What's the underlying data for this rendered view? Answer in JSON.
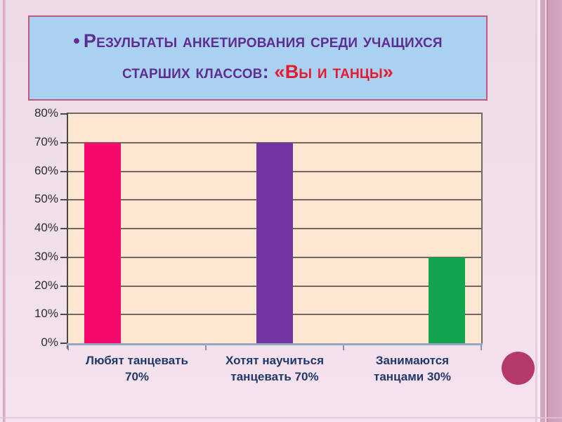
{
  "title": {
    "bullet": "•",
    "line1": "Результаты анкетирования среди учащихся",
    "line2": "старших классов: ",
    "accent": "«Вы и танцы»",
    "text_color": "#5f2d91",
    "accent_color": "#e8192c",
    "box_fill": "#a9d1f2",
    "box_border": "#c4587c"
  },
  "chart_data": {
    "type": "bar",
    "title": "",
    "categories": [
      {
        "label": "Любят танцевать 70%",
        "line1": "Любят танцевать",
        "line2": "70%"
      },
      {
        "label": "Хотят научиться танцевать 70%",
        "line1": "Хотят научиться",
        "line2": "танцевать 70%"
      },
      {
        "label": "Занимаются танцами 30%",
        "line1": "Занимаются",
        "line2": "танцами 30%"
      }
    ],
    "values": [
      70,
      70,
      30
    ],
    "series": [
      {
        "name": "Любят танцевать",
        "value": 70,
        "color": "#f5096b"
      },
      {
        "name": "Хотят научиться танцевать",
        "value": 70,
        "color": "#7334a4"
      },
      {
        "name": "Занимаются танцами",
        "value": 30,
        "color": "#13a450"
      }
    ],
    "y_ticks": [
      "0%",
      "10%",
      "20%",
      "30%",
      "40%",
      "50%",
      "60%",
      "70%",
      "80%"
    ],
    "ylim": [
      0,
      80
    ],
    "grid": true,
    "legend": "none",
    "xlabel": "",
    "ylabel": "",
    "plot_bg": "#fde7d1",
    "grid_color": "#6f695f",
    "baseline_color": "#93a9c0",
    "category_label_color": "#21386b",
    "tick_label_color": "#2e2e2e"
  },
  "decor": {
    "circle_color": "#b43a6b"
  }
}
